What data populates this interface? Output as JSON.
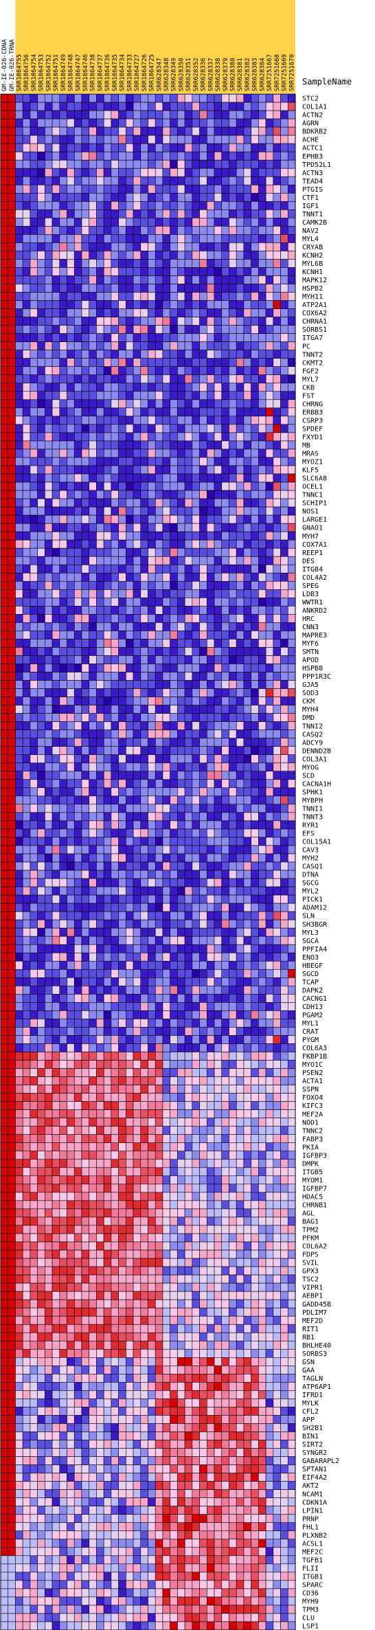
{
  "chart_data": {
    "type": "heatmap",
    "y_header": "SampleName",
    "columns": [
      "GM-IE-026-CDNA",
      "GM-IE-026-TRNA",
      "SRR1864755",
      "SRR1864756",
      "SRR1864754",
      "SRR1864753",
      "SRR1864752",
      "SRR1864751",
      "SRR1864749",
      "SRR1864748",
      "SRR1864747",
      "SRR1864746",
      "SRR1864738",
      "SRR1864737",
      "SRR1864736",
      "SRR1864735",
      "SRR1864734",
      "SRR1864733",
      "SRR1864727",
      "SRR1864726",
      "SRR1864725",
      "SRR628347",
      "SRR628348",
      "SRR628349",
      "SRR628350",
      "SRR628351",
      "SRR628352",
      "SRR628336",
      "SRR628337",
      "SRR628338",
      "SRR628379",
      "SRR628380",
      "SRR628381",
      "SRR628382",
      "SRR628383",
      "SRR628384",
      "SRR7251667",
      "SRR7251668",
      "SRR7251669",
      "SRR7251670"
    ],
    "rows": [
      "STC2",
      "COL1A1",
      "ACTN2",
      "AGRN",
      "BDKRB2",
      "ACHE",
      "ACTC1",
      "EPHB3",
      "TPD52L1",
      "ACTN3",
      "TEAD4",
      "PTGIS",
      "CTF1",
      "IGF1",
      "TNNT1",
      "CAMK2B",
      "NAV2",
      "MYL4",
      "CRYAB",
      "KCNH2",
      "MYL6B",
      "KCNH1",
      "MAPK12",
      "HSPB2",
      "MYH11",
      "ATP2A1",
      "COX6A2",
      "CHRNA1",
      "SORBS1",
      "ITGA7",
      "PC",
      "TNNT2",
      "CKMT2",
      "FGF2",
      "MYL7",
      "CKB",
      "FST",
      "CHRNG",
      "ERBB3",
      "CSRP3",
      "SPDEF",
      "FXYD1",
      "MB",
      "MRAS",
      "MYOZ1",
      "KLF5",
      "SLC6A8",
      "OCEL1",
      "TNNC1",
      "SCHIP1",
      "NOS1",
      "LARGE1",
      "GNAO1",
      "MYH7",
      "COX7A1",
      "REEP1",
      "DES",
      "ITGB4",
      "COL4A2",
      "SPEG",
      "LDB3",
      "WWTR1",
      "ANKRD2",
      "HRC",
      "CNN3",
      "MAPRE3",
      "MYF6",
      "SMTN",
      "APOD",
      "HSPB8",
      "PPP1R3C",
      "GJA5",
      "SOD3",
      "CKM",
      "MYH4",
      "DMD",
      "TNNI2",
      "CASQ2",
      "ADCY9",
      "DENND2B",
      "COL3A1",
      "MYOG",
      "SCD",
      "CACNA1H",
      "SPHK1",
      "MYBPH",
      "TNNI1",
      "TNNT3",
      "RYR1",
      "EFS",
      "COL15A1",
      "CAV3",
      "MYH2",
      "CASQ1",
      "DTNA",
      "SGCG",
      "MYL2",
      "PICK1",
      "ADAM12",
      "SLN",
      "SH3BGR",
      "MYL3",
      "SGCA",
      "PPFIA4",
      "ENO3",
      "HBEGF",
      "SGCD",
      "TCAP",
      "DAPK2",
      "CACNG1",
      "CDH13",
      "PGAM2",
      "MYL1",
      "CRAT",
      "PYGM",
      "COL6A3",
      "FKBP1B",
      "MYO1C",
      "PSEN2",
      "ACTA1",
      "SSPN",
      "FOXO4",
      "KIFC3",
      "MEF2A",
      "NOD1",
      "TNNC2",
      "FABP3",
      "PKIA",
      "IGFBP3",
      "DMPK",
      "ITGB5",
      "MYOM1",
      "IGFBP7",
      "HDAC5",
      "CHRNB1",
      "AGL",
      "BAG1",
      "TPM2",
      "PFKM",
      "COL6A2",
      "FDPS",
      "SVIL",
      "GPX3",
      "TSC2",
      "VIPR1",
      "AEBP1",
      "GADD45B",
      "PDLIM7",
      "MEF2D",
      "RIT1",
      "RB1",
      "BHLHE40",
      "SORBS3",
      "GSN",
      "GAA",
      "TAGLN",
      "ATP6AP1",
      "IFRD1",
      "MYLK",
      "CFL2",
      "APP",
      "SH2B1",
      "BIN1",
      "SIRT2",
      "SYNGR2",
      "GABARAPL2",
      "SPTAN1",
      "EIF4A2",
      "AKT2",
      "NCAM1",
      "CDKN1A",
      "LPIN1",
      "PRNP",
      "FHL1",
      "PLXNB2",
      "ACSL1",
      "MEF2C",
      "TGFB1",
      "FLII",
      "ITGB1",
      "SPARC",
      "CD36",
      "MYH9",
      "TPM3",
      "CLU",
      "LSP1"
    ],
    "color_scale": [
      "#2a00aa",
      "#3a1ac8",
      "#5a4ee0",
      "#8c8cf0",
      "#bcbcf8",
      "#e8d0f0",
      "#f8c8e8",
      "#f6a6c8",
      "#f07a98",
      "#e84e60",
      "#e02a30",
      "#d60000"
    ],
    "value_range": [
      0,
      1
    ],
    "gene_hint": "pink strong up top, later rows shift high values into middle columns",
    "values": []
  }
}
